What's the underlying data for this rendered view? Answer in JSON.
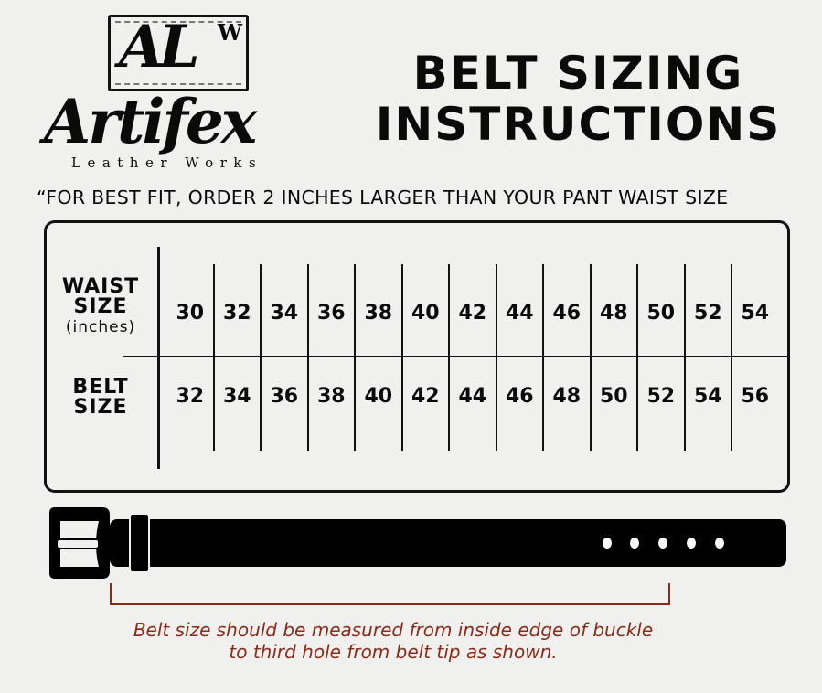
{
  "logo": {
    "monogram": "AL",
    "monogram_sup": "W",
    "name": "Artifex",
    "tagline": "Leather Works"
  },
  "title": {
    "line1": "BELT SIZING",
    "line2": "INSTRUCTIONS"
  },
  "subtitle": "“FOR BEST FIT, ORDER 2 INCHES LARGER THAN YOUR PANT WAIST SIZE",
  "table": {
    "waist_header": {
      "line1": "WAIST",
      "line2": "SIZE",
      "unit": "(inches)"
    },
    "belt_header": {
      "line1": "BELT",
      "line2": "SIZE"
    },
    "waist_sizes": [
      "30",
      "32",
      "34",
      "36",
      "38",
      "40",
      "42",
      "44",
      "46",
      "48",
      "50",
      "52",
      "54"
    ],
    "belt_sizes": [
      "32",
      "34",
      "36",
      "38",
      "40",
      "42",
      "44",
      "46",
      "48",
      "50",
      "52",
      "54",
      "56"
    ]
  },
  "note": {
    "line1": "Belt size should be measured from inside edge of buckle",
    "line2": "to third hole from belt tip as shown."
  },
  "colors": {
    "ink": "#0a0a0a",
    "note": "#8b2a18",
    "background": "#f0f0ef"
  }
}
